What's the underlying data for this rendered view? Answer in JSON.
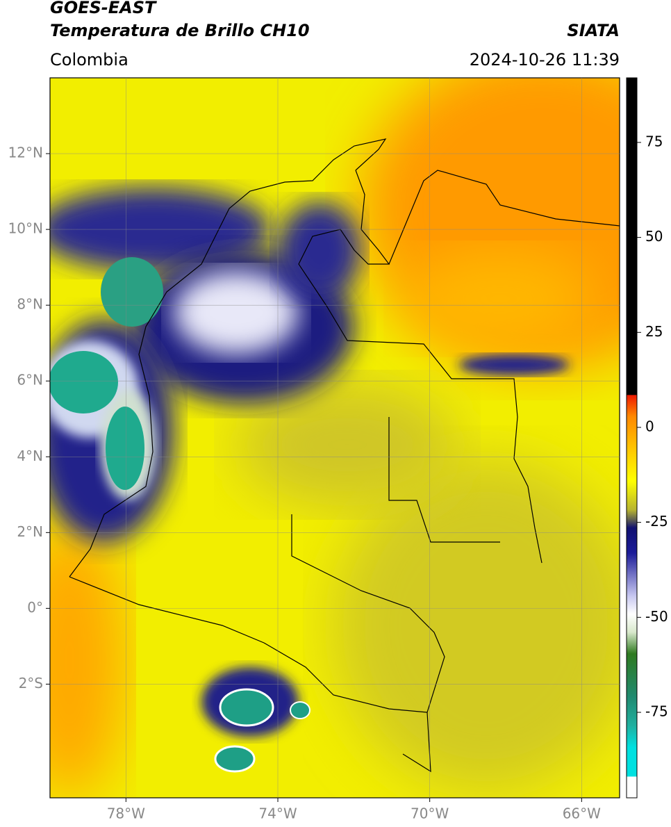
{
  "header": {
    "satellite": "GOES-EAST",
    "product": "Temperatura de Brillo CH10",
    "agency": "SIATA",
    "region": "Colombia",
    "timestamp": "2024-10-26 11:39"
  },
  "map": {
    "lon_range": [
      -80,
      -65
    ],
    "lat_range": [
      -5,
      14
    ],
    "lon_ticks": [
      {
        "value": -78,
        "label": "78°W"
      },
      {
        "value": -74,
        "label": "74°W"
      },
      {
        "value": -70,
        "label": "70°W"
      },
      {
        "value": -66,
        "label": "66°W"
      }
    ],
    "lat_ticks": [
      {
        "value": 12,
        "label": "12°N"
      },
      {
        "value": 10,
        "label": "10°N"
      },
      {
        "value": 8,
        "label": "8°N"
      },
      {
        "value": 6,
        "label": "6°N"
      },
      {
        "value": 4,
        "label": "4°N"
      },
      {
        "value": 2,
        "label": "2°N"
      },
      {
        "value": 0,
        "label": "0°"
      },
      {
        "value": -2,
        "label": "2°S"
      }
    ],
    "grid": true
  },
  "colorbar": {
    "range": [
      -97.5,
      92
    ],
    "ticks": [
      75,
      50,
      25,
      0,
      -25,
      -50,
      -75
    ]
  }
}
